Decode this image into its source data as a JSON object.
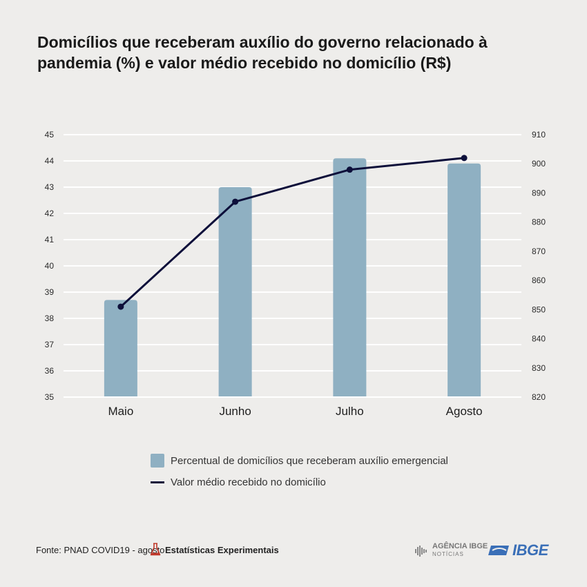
{
  "title": "Domicílios que receberam auxílio do governo relacionado à pandemia (%) e valor médio recebido no domicílio (R$)",
  "chart_data": {
    "type": "bar",
    "categories": [
      "Maio",
      "Junho",
      "Julho",
      "Agosto"
    ],
    "series": [
      {
        "name": "Percentual de domicílios que receberam auxílio emergencial",
        "type": "bar",
        "axis": "left",
        "values": [
          38.7,
          43.0,
          44.1,
          43.9
        ]
      },
      {
        "name": "Valor médio recebido no domicílio",
        "type": "line",
        "axis": "right",
        "values": [
          851,
          887,
          898,
          902
        ]
      }
    ],
    "y_left": {
      "range": [
        35,
        45
      ],
      "ticks": [
        "35",
        "36",
        "37",
        "38",
        "39",
        "40",
        "41",
        "42",
        "43",
        "44",
        "45"
      ]
    },
    "y_right": {
      "range": [
        820,
        910
      ],
      "ticks": [
        "820",
        "830",
        "840",
        "850",
        "860",
        "870",
        "880",
        "890",
        "900",
        "910"
      ]
    },
    "grid": true,
    "legend_position": "bottom",
    "colors": {
      "bar": "#8fb0c2",
      "line": "#0d0f3a",
      "grid": "#ffffff"
    }
  },
  "footer": {
    "source": "Fonte: PNAD COVID19 - agosto",
    "experimental": "Estatísticas Experimentais",
    "agency": "AGÊNCIA IBGE",
    "agency_sub": "NOTÍCIAS",
    "logo": "IBGE"
  }
}
